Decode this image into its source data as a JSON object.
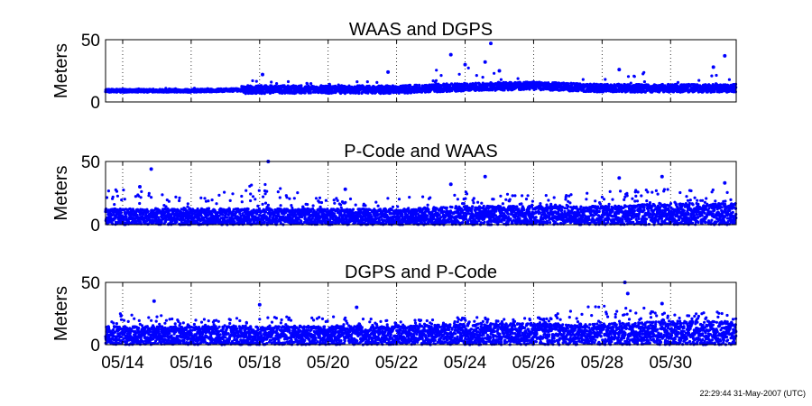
{
  "footer": {
    "timestamp": "22:29:44 31-May-2007 (UTC)"
  },
  "colors": {
    "marker": "#0000ff",
    "axis": "#000000",
    "grid": "#000000",
    "background": "#ffffff"
  },
  "chart_data": [
    {
      "type": "scatter",
      "title": "WAAS and DGPS",
      "ylabel": "Meters",
      "xlabel": "",
      "ylim": [
        0,
        50
      ],
      "yticks": [
        0,
        50
      ],
      "xlim": [
        "05/13 12:00",
        "05/31 22:00"
      ],
      "xtick_labels": [],
      "grid": "x-dotted",
      "series": [
        {
          "marker": "dot",
          "baseline_by_day": [
            {
              "day": "05/14",
              "typical": 9,
              "max": 13
            },
            {
              "day": "05/16",
              "typical": 9,
              "max": 12
            },
            {
              "day": "05/18",
              "typical": 10,
              "max": 23
            },
            {
              "day": "05/20",
              "typical": 10,
              "max": 18
            },
            {
              "day": "05/22",
              "typical": 10,
              "max": 24
            },
            {
              "day": "05/24",
              "typical": 12,
              "max": 47
            },
            {
              "day": "05/26",
              "typical": 13,
              "max": 20
            },
            {
              "day": "05/28",
              "typical": 11,
              "max": 26
            },
            {
              "day": "05/30",
              "typical": 11,
              "max": 37
            }
          ],
          "outliers": [
            {
              "x": "05/18 02:00",
              "y": 22
            },
            {
              "x": "05/21 18:00",
              "y": 24
            },
            {
              "x": "05/23 14:00",
              "y": 38
            },
            {
              "x": "05/24 00:00",
              "y": 30
            },
            {
              "x": "05/24 14:00",
              "y": 32
            },
            {
              "x": "05/24 18:00",
              "y": 47
            },
            {
              "x": "05/25 00:00",
              "y": 25
            },
            {
              "x": "05/28 12:00",
              "y": 26
            },
            {
              "x": "05/31 06:00",
              "y": 28
            },
            {
              "x": "05/31 14:00",
              "y": 37
            }
          ]
        }
      ]
    },
    {
      "type": "scatter",
      "title": "P-Code and WAAS",
      "ylabel": "Meters",
      "xlabel": "",
      "ylim": [
        0,
        50
      ],
      "yticks": [
        0,
        50
      ],
      "xlim": [
        "05/13 12:00",
        "05/31 22:00"
      ],
      "xtick_labels": [],
      "grid": "x-dotted",
      "series": [
        {
          "marker": "dot",
          "baseline_by_day": [
            {
              "day": "05/14",
              "typical": 6,
              "max": 44
            },
            {
              "day": "05/16",
              "typical": 6,
              "max": 30
            },
            {
              "day": "05/18",
              "typical": 6,
              "max": 50
            },
            {
              "day": "05/20",
              "typical": 6,
              "max": 28
            },
            {
              "day": "05/22",
              "typical": 6,
              "max": 30
            },
            {
              "day": "05/24",
              "typical": 7,
              "max": 38
            },
            {
              "day": "05/26",
              "typical": 7,
              "max": 30
            },
            {
              "day": "05/28",
              "typical": 7,
              "max": 37
            },
            {
              "day": "05/30",
              "typical": 8,
              "max": 38
            }
          ],
          "outliers": [
            {
              "x": "05/14 12:00",
              "y": 30
            },
            {
              "x": "05/14 20:00",
              "y": 44
            },
            {
              "x": "05/18 06:00",
              "y": 50
            },
            {
              "x": "05/20 12:00",
              "y": 28
            },
            {
              "x": "05/23 14:00",
              "y": 32
            },
            {
              "x": "05/24 14:00",
              "y": 38
            },
            {
              "x": "05/28 12:00",
              "y": 37
            },
            {
              "x": "05/29 18:00",
              "y": 38
            },
            {
              "x": "05/31 14:00",
              "y": 33
            }
          ]
        }
      ]
    },
    {
      "type": "scatter",
      "title": "DGPS and P-Code",
      "ylabel": "Meters",
      "xlabel": "",
      "ylim": [
        0,
        50
      ],
      "yticks": [
        0,
        50
      ],
      "xlim": [
        "05/13 12:00",
        "05/31 22:00"
      ],
      "xtick_labels": [
        "05/14",
        "05/16",
        "05/18",
        "05/20",
        "05/22",
        "05/24",
        "05/26",
        "05/28",
        "05/30"
      ],
      "grid": "x-dotted",
      "series": [
        {
          "marker": "dot",
          "baseline_by_day": [
            {
              "day": "05/14",
              "typical": 7,
              "max": 35
            },
            {
              "day": "05/16",
              "typical": 7,
              "max": 28
            },
            {
              "day": "05/18",
              "typical": 7,
              "max": 32
            },
            {
              "day": "05/20",
              "typical": 7,
              "max": 30
            },
            {
              "day": "05/22",
              "typical": 7,
              "max": 25
            },
            {
              "day": "05/24",
              "typical": 8,
              "max": 27
            },
            {
              "day": "05/26",
              "typical": 8,
              "max": 25
            },
            {
              "day": "05/28",
              "typical": 8,
              "max": 50
            },
            {
              "day": "05/30",
              "typical": 9,
              "max": 33
            }
          ],
          "outliers": [
            {
              "x": "05/14 22:00",
              "y": 35
            },
            {
              "x": "05/18 00:00",
              "y": 32
            },
            {
              "x": "05/20 20:00",
              "y": 30
            },
            {
              "x": "05/28 16:00",
              "y": 50
            },
            {
              "x": "05/28 18:00",
              "y": 41
            },
            {
              "x": "05/29 18:00",
              "y": 33
            }
          ]
        }
      ]
    }
  ]
}
